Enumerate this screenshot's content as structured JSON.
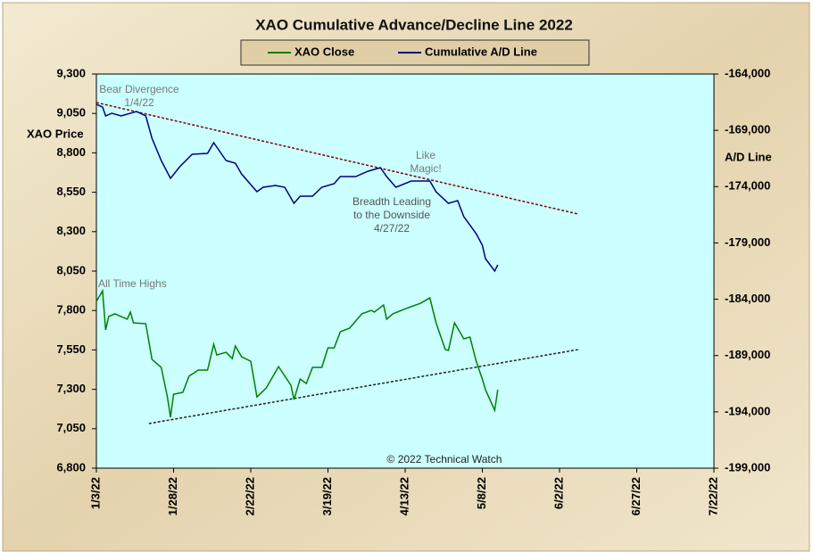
{
  "chart_data": {
    "type": "line",
    "title": "XAO Cumulative Advance/Decline Line 2022",
    "ylabel": "XAO Price",
    "y2label": "A/D Line",
    "xlim": [
      "2022-01-03",
      "2022-07-22"
    ],
    "xticks": [
      {
        "value": "2022-01-03",
        "label": "1/3/22"
      },
      {
        "value": "2022-01-28",
        "label": "1/28/22"
      },
      {
        "value": "2022-02-22",
        "label": "2/22/22"
      },
      {
        "value": "2022-03-19",
        "label": "3/19/22"
      },
      {
        "value": "2022-04-13",
        "label": "4/13/22"
      },
      {
        "value": "2022-05-08",
        "label": "5/8/22"
      },
      {
        "value": "2022-06-02",
        "label": "6/2/22"
      },
      {
        "value": "2022-06-27",
        "label": "6/27/22"
      },
      {
        "value": "2022-07-22",
        "label": "7/22/22"
      }
    ],
    "ylim": [
      6800,
      9300
    ],
    "yticks": [
      {
        "value": 6800,
        "label": "6,800"
      },
      {
        "value": 7050,
        "label": "7,050"
      },
      {
        "value": 7300,
        "label": "7,300"
      },
      {
        "value": 7550,
        "label": "7,550"
      },
      {
        "value": 7800,
        "label": "7,800"
      },
      {
        "value": 8050,
        "label": "8,050"
      },
      {
        "value": 8300,
        "label": "8,300"
      },
      {
        "value": 8550,
        "label": "8,550"
      },
      {
        "value": 8800,
        "label": "8,800"
      },
      {
        "value": 9050,
        "label": "9,050"
      },
      {
        "value": 9300,
        "label": "9,300"
      }
    ],
    "y2lim": [
      -199000,
      -164000
    ],
    "y2ticks": [
      {
        "value": -199000,
        "label": "-199,000"
      },
      {
        "value": -194000,
        "label": "-194,000"
      },
      {
        "value": -189000,
        "label": "-189,000"
      },
      {
        "value": -184000,
        "label": "-184,000"
      },
      {
        "value": -179000,
        "label": "-179,000"
      },
      {
        "value": -174000,
        "label": "-174,000"
      },
      {
        "value": -169000,
        "label": "-169,000"
      },
      {
        "value": -164000,
        "label": "-164,000"
      }
    ],
    "series": [
      {
        "name": "XAO Close",
        "color": "#008000",
        "x": [
          "2022-01-03",
          "2022-01-05",
          "2022-01-06",
          "2022-01-07",
          "2022-01-09",
          "2022-01-13",
          "2022-01-14",
          "2022-01-15",
          "2022-01-19",
          "2022-01-21",
          "2022-01-24",
          "2022-01-26",
          "2022-01-27",
          "2022-01-28",
          "2022-01-31",
          "2022-02-02",
          "2022-02-05",
          "2022-02-08",
          "2022-02-10",
          "2022-02-11",
          "2022-02-14",
          "2022-02-16",
          "2022-02-17",
          "2022-02-19",
          "2022-02-22",
          "2022-02-24",
          "2022-02-27",
          "2022-03-03",
          "2022-03-07",
          "2022-03-08",
          "2022-03-10",
          "2022-03-12",
          "2022-03-14",
          "2022-03-17",
          "2022-03-19",
          "2022-03-21",
          "2022-03-23",
          "2022-03-26",
          "2022-03-30",
          "2022-04-02",
          "2022-04-03",
          "2022-04-06",
          "2022-04-07",
          "2022-04-09",
          "2022-04-14",
          "2022-04-18",
          "2022-04-21",
          "2022-04-23",
          "2022-04-26",
          "2022-04-27",
          "2022-04-29",
          "2022-05-02",
          "2022-05-04",
          "2022-05-06",
          "2022-05-08",
          "2022-05-09",
          "2022-05-12",
          "2022-05-13"
        ],
        "values": [
          7857,
          7925,
          7677,
          7762,
          7779,
          7745,
          7790,
          7722,
          7716,
          7490,
          7439,
          7252,
          7122,
          7269,
          7281,
          7383,
          7422,
          7422,
          7586,
          7518,
          7535,
          7495,
          7575,
          7507,
          7478,
          7252,
          7308,
          7444,
          7326,
          7235,
          7365,
          7337,
          7439,
          7439,
          7563,
          7563,
          7665,
          7688,
          7779,
          7801,
          7790,
          7835,
          7745,
          7779,
          7818,
          7846,
          7880,
          7722,
          7552,
          7547,
          7722,
          7620,
          7631,
          7478,
          7365,
          7298,
          7167,
          7298
        ]
      },
      {
        "name": "Cumulative A/D Line",
        "color": "#000080",
        "axis": "y2",
        "x": [
          "2022-01-03",
          "2022-01-05",
          "2022-01-06",
          "2022-01-08",
          "2022-01-11",
          "2022-01-16",
          "2022-01-19",
          "2022-01-21",
          "2022-01-24",
          "2022-01-27",
          "2022-01-30",
          "2022-02-01",
          "2022-02-03",
          "2022-02-08",
          "2022-02-10",
          "2022-02-14",
          "2022-02-17",
          "2022-02-19",
          "2022-02-24",
          "2022-02-26",
          "2022-03-02",
          "2022-03-05",
          "2022-03-08",
          "2022-03-10",
          "2022-03-14",
          "2022-03-17",
          "2022-03-21",
          "2022-03-23",
          "2022-03-28",
          "2022-04-01",
          "2022-04-05",
          "2022-04-07",
          "2022-04-10",
          "2022-04-15",
          "2022-04-21",
          "2022-04-23",
          "2022-04-27",
          "2022-04-30",
          "2022-05-02",
          "2022-05-06",
          "2022-05-08",
          "2022-05-09",
          "2022-05-12",
          "2022-05-13"
        ],
        "values": [
          -166692,
          -166930,
          -167722,
          -167484,
          -167722,
          -167326,
          -167722,
          -169701,
          -171681,
          -173265,
          -172235,
          -171681,
          -171127,
          -171048,
          -170098,
          -171681,
          -171919,
          -172869,
          -174453,
          -174057,
          -173899,
          -174057,
          -175482,
          -174849,
          -174849,
          -174057,
          -173740,
          -173107,
          -173107,
          -172631,
          -172315,
          -173107,
          -174057,
          -173503,
          -173503,
          -174453,
          -175482,
          -175245,
          -176670,
          -178175,
          -179204,
          -180392,
          -181500,
          -180946
        ]
      }
    ],
    "trendlines": [
      {
        "color": "#800000",
        "x": [
          "2022-01-03",
          "2022-06-08"
        ],
        "values": [
          9119,
          8412
        ]
      },
      {
        "color": "#202020",
        "x": [
          "2022-01-20",
          "2022-06-08"
        ],
        "values": [
          7083,
          7552
        ]
      }
    ],
    "annotations": [
      {
        "lines": [
          "Bear Divergence",
          "1/4/22"
        ]
      },
      {
        "lines": [
          "Like",
          "Magic!"
        ]
      },
      {
        "lines": [
          "Breadth Leading",
          "to the Downside",
          "4/27/22"
        ]
      },
      {
        "lines": [
          "All Time Highs"
        ]
      },
      {
        "lines": [
          "© 2022 Technical Watch"
        ]
      }
    ]
  }
}
